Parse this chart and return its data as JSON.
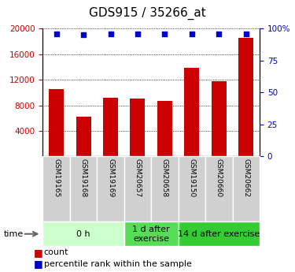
{
  "title": "GDS915 / 35266_at",
  "samples": [
    "GSM19165",
    "GSM19168",
    "GSM19169",
    "GSM20657",
    "GSM20658",
    "GSM19150",
    "GSM20660",
    "GSM20662"
  ],
  "counts": [
    10500,
    6200,
    9200,
    9000,
    8700,
    13800,
    11800,
    18500
  ],
  "percentile_ranks": [
    96,
    95,
    96,
    96,
    96,
    96,
    96,
    96
  ],
  "bar_color": "#cc0000",
  "dot_color": "#0000cc",
  "left_ylim": [
    0,
    20000
  ],
  "left_yticks": [
    4000,
    8000,
    12000,
    16000,
    20000
  ],
  "right_ylim": [
    0,
    100
  ],
  "right_yticks": [
    0,
    25,
    50,
    75,
    100
  ],
  "right_yticklabels": [
    "0",
    "25",
    "50",
    "75",
    "100%"
  ],
  "groups": [
    {
      "label": "0 h",
      "start": 0,
      "end": 3,
      "color": "#ccffcc"
    },
    {
      "label": "1 d after\nexercise",
      "start": 3,
      "end": 5,
      "color": "#55dd55"
    },
    {
      "label": "14 d after exercise",
      "start": 5,
      "end": 8,
      "color": "#33cc33"
    }
  ],
  "sample_bg_color": "#cccccc",
  "time_label": "time",
  "legend_count_label": "count",
  "legend_percentile_label": "percentile rank within the sample",
  "title_fontsize": 11,
  "tick_fontsize": 7.5,
  "sample_fontsize": 6.5,
  "group_fontsize": 8,
  "legend_fontsize": 8
}
